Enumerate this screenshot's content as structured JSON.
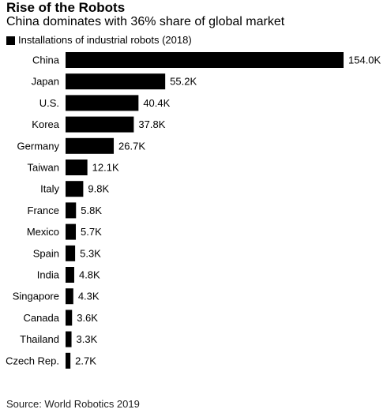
{
  "title": "Rise of the Robots",
  "subtitle": "China dominates with 36% share of global market",
  "legend_label": "Installations of industrial robots (2018)",
  "source": "Source: World Robotics 2019",
  "colors": {
    "bar": "#000000",
    "text": "#000000"
  },
  "chart_data": {
    "type": "bar",
    "orientation": "horizontal",
    "title": "Rise of the Robots",
    "subtitle": "China dominates with 36% share of global market",
    "legend": "top-left",
    "grid": false,
    "categories": [
      "China",
      "Japan",
      "U.S.",
      "Korea",
      "Germany",
      "Taiwan",
      "Italy",
      "France",
      "Mexico",
      "Spain",
      "India",
      "Singapore",
      "Canada",
      "Thailand",
      "Czech Rep."
    ],
    "series": [
      {
        "name": "Installations of industrial robots (2018)",
        "values": [
          154.0,
          55.2,
          40.4,
          37.8,
          26.7,
          12.1,
          9.8,
          5.8,
          5.7,
          5.3,
          4.8,
          4.3,
          3.6,
          3.3,
          2.7
        ],
        "labels": [
          "154.0K",
          "55.2K",
          "40.4K",
          "37.8K",
          "26.7K",
          "12.1K",
          "9.8K",
          "5.8K",
          "5.7K",
          "5.3K",
          "4.8K",
          "4.3K",
          "3.6K",
          "3.3K",
          "2.7K"
        ]
      }
    ],
    "xlim": [
      0,
      154.0
    ]
  }
}
